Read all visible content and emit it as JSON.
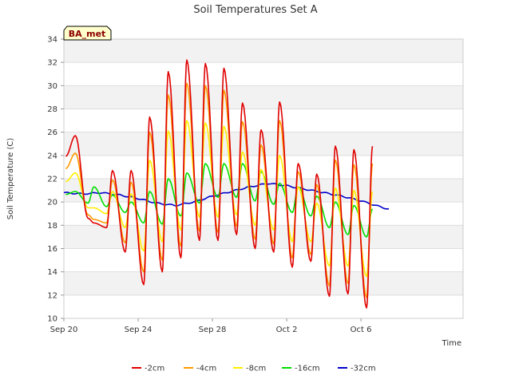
{
  "chart_data": {
    "type": "line",
    "title": "Soil Temperatures Set A",
    "xlabel": "Time",
    "ylabel": "Soil Temperature (C)",
    "badge": "BA_met",
    "ylim": [
      10,
      34
    ],
    "yticks": [
      10,
      12,
      14,
      16,
      18,
      20,
      22,
      24,
      26,
      28,
      30,
      32,
      34
    ],
    "xlim": [
      0,
      21.5
    ],
    "xticks": [
      {
        "day": 0,
        "label": "Sep 20"
      },
      {
        "day": 4,
        "label": "Sep 24"
      },
      {
        "day": 8,
        "label": "Sep 28"
      },
      {
        "day": 12,
        "label": "Oct 2"
      },
      {
        "day": 16,
        "label": "Oct 6"
      }
    ],
    "grid": true,
    "legend_position": "bottom",
    "series": [
      {
        "name": "-2cm",
        "color": "#e00000",
        "min": [
          18.6,
          17.8,
          15.7,
          12.9,
          14.0,
          15.2,
          16.7,
          16.7,
          17.2,
          16.0,
          15.7,
          14.4,
          14.9,
          11.9,
          12.1,
          10.9
        ],
        "max": [
          25.7,
          18.2,
          22.7,
          22.7,
          27.3,
          31.2,
          32.2,
          31.9,
          31.5,
          28.5,
          26.2,
          28.6,
          23.3,
          22.4,
          24.8,
          24.5,
          24.8
        ]
      },
      {
        "name": "-4cm",
        "color": "#ff9900",
        "min": [
          18.9,
          18.2,
          16.5,
          14.0,
          15.0,
          16.2,
          17.5,
          17.4,
          17.9,
          16.8,
          16.4,
          15.2,
          15.5,
          12.8,
          13.0,
          11.8
        ],
        "max": [
          24.2,
          18.5,
          21.9,
          21.7,
          26.0,
          29.2,
          30.2,
          30.0,
          29.6,
          26.9,
          24.9,
          27.0,
          22.6,
          21.5,
          23.6,
          23.2,
          23.3
        ]
      },
      {
        "name": "-8cm",
        "color": "#ffee00",
        "min": [
          19.5,
          19.0,
          17.8,
          15.8,
          16.6,
          17.6,
          18.7,
          18.7,
          18.9,
          18.0,
          17.6,
          16.6,
          16.6,
          14.5,
          14.5,
          13.6
        ],
        "max": [
          22.5,
          19.5,
          20.9,
          20.7,
          23.6,
          26.1,
          27.0,
          26.8,
          26.5,
          24.3,
          22.8,
          24.0,
          21.3,
          19.9,
          21.2,
          21.0,
          20.9
        ]
      },
      {
        "name": "-16cm",
        "color": "#00dd00",
        "min": [
          19.9,
          19.6,
          19.1,
          18.2,
          18.1,
          18.8,
          19.9,
          20.4,
          20.4,
          20.1,
          19.8,
          19.1,
          18.8,
          17.8,
          17.2,
          17.0
        ],
        "max": [
          20.9,
          21.3,
          20.6,
          20.0,
          20.9,
          22.0,
          22.5,
          23.3,
          23.3,
          23.3,
          22.6,
          21.6,
          21.3,
          20.5,
          20.0,
          19.7,
          19.4
        ]
      },
      {
        "name": "-32cm",
        "color": "#0000cc",
        "x": [
          0.0,
          1.0,
          2.0,
          3.0,
          4.0,
          5.0,
          6.0,
          7.0,
          8.0,
          9.0,
          10.0,
          11.0,
          12.0,
          13.0,
          14.0,
          15.0,
          16.0,
          17.0,
          17.5
        ],
        "y": [
          20.8,
          20.7,
          20.8,
          20.6,
          20.3,
          19.9,
          19.7,
          20.0,
          20.5,
          20.9,
          21.3,
          21.6,
          21.4,
          21.1,
          20.8,
          20.5,
          20.1,
          19.6,
          19.4
        ]
      }
    ]
  }
}
